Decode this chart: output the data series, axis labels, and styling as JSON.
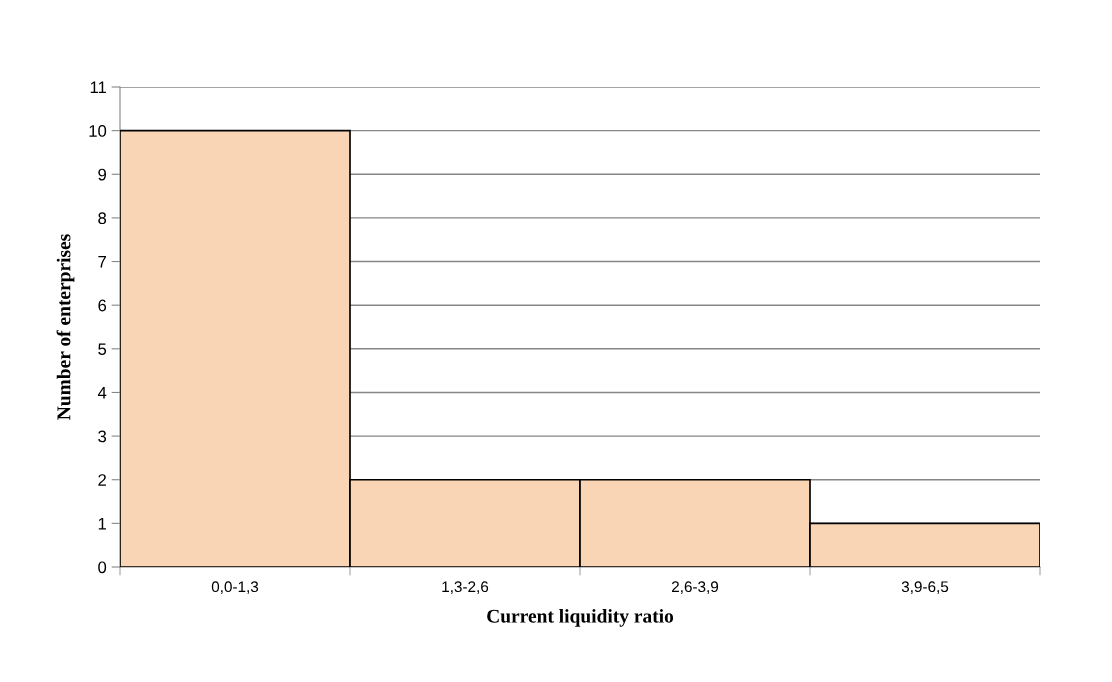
{
  "chart_data": {
    "type": "bar",
    "xlabel": "Current liquidity ratio",
    "ylabel": "Number of enterprises",
    "categories": [
      "0,0-1,3",
      "1,3-2,6",
      "2,6-3,9",
      "3,9-6,5"
    ],
    "values": [
      10,
      2,
      2,
      1
    ],
    "color": "#fad5b5",
    "ylim": [
      0,
      11
    ],
    "yticks": [
      0,
      1,
      2,
      3,
      4,
      5,
      6,
      7,
      8,
      9,
      10,
      11
    ],
    "grid": "y"
  }
}
